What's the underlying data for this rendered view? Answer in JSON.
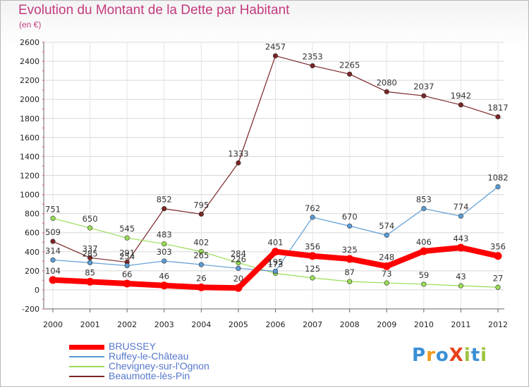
{
  "title": "Evolution du Montant de la Dette par Habitant",
  "unit_label": "(en €)",
  "logo": {
    "text": "ProXiti",
    "colors": [
      "#3a8fd6",
      "#f39a1e",
      "#3a8fd6",
      "#e8401c",
      "#9bc43c",
      "#3a8fd6",
      "#9bc43c"
    ]
  },
  "chart_data": {
    "type": "line",
    "title": "Evolution du Montant de la Dette par Habitant",
    "ylabel": "(en €)",
    "xlabel": "",
    "x": [
      "2000",
      "2001",
      "2002",
      "2003",
      "2004",
      "2005",
      "2006",
      "2007",
      "2008",
      "2009",
      "2010",
      "2011",
      "2012"
    ],
    "ylim": [
      -200,
      2600
    ],
    "yticks": [
      -200,
      0,
      200,
      400,
      600,
      800,
      1000,
      1200,
      1400,
      1600,
      1800,
      2000,
      2200,
      2400,
      2600
    ],
    "grid": true,
    "legend_position": "bottom-left",
    "series": [
      {
        "name": "BRUSSEY",
        "color": "#ff0000",
        "values": [
          104,
          85,
          66,
          46,
          26,
          20,
          401,
          356,
          325,
          248,
          406,
          443,
          356
        ]
      },
      {
        "name": "Ruffey-le-Château",
        "color": "#5b9bd5",
        "values": [
          314,
          285,
          254,
          303,
          265,
          226,
          195,
          762,
          670,
          574,
          853,
          774,
          1082
        ]
      },
      {
        "name": "Chevigney-sur-l'Ognon",
        "color": "#99dd55",
        "values": [
          751,
          650,
          545,
          483,
          402,
          284,
          173,
          125,
          87,
          73,
          59,
          43,
          27
        ]
      },
      {
        "name": "Beaumotte-lès-Pin",
        "color": "#7b2525",
        "values": [
          509,
          337,
          291,
          852,
          795,
          1333,
          2457,
          2353,
          2265,
          2080,
          2037,
          1942,
          1817
        ]
      }
    ]
  }
}
